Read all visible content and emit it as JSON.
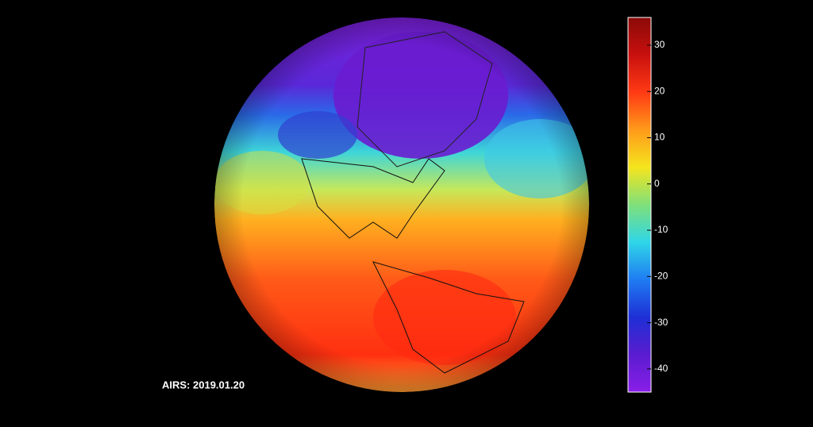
{
  "caption": "AIRS: 2019.01.20",
  "colorbar": {
    "lim": [
      -45,
      36
    ],
    "ticks": [
      -40,
      -30,
      -20,
      -10,
      0,
      10,
      20,
      30
    ],
    "colors": [
      "#8a1fe8",
      "#5a1ccf",
      "#1e2fd6",
      "#1f7cf2",
      "#2fd6e8",
      "#7fe07a",
      "#f5e51e",
      "#ff9a1a",
      "#ff3a14",
      "#c8100e",
      "#8a0a08"
    ]
  }
}
